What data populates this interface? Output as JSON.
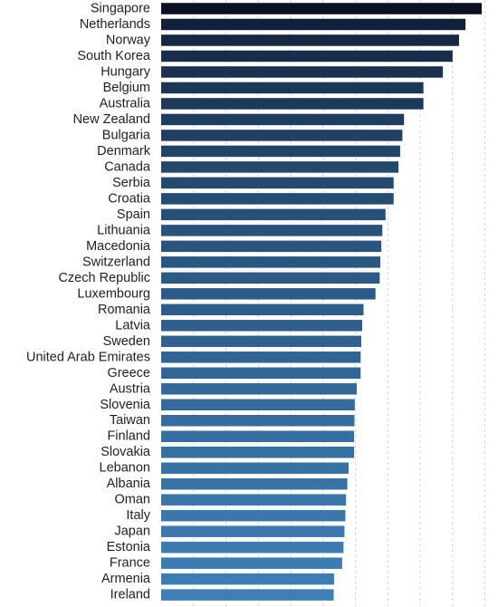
{
  "chart_data": {
    "type": "bar",
    "orientation": "horizontal",
    "title": "",
    "xlabel": "",
    "ylabel": "",
    "grid": true,
    "xlim": [
      0,
      100
    ],
    "categories": [
      "Singapore",
      "Netherlands",
      "Norway",
      "South Korea",
      "Hungary",
      "Belgium",
      "Australia",
      "New Zealand",
      "Bulgaria",
      "Denmark",
      "Canada",
      "Serbia",
      "Croatia",
      "Spain",
      "Lithuania",
      "Macedonia",
      "Switzerland",
      "Czech Republic",
      "Luxembourg",
      "Romania",
      "Latvia",
      "Sweden",
      "United Arab Emirates",
      "Greece",
      "Austria",
      "Slovenia",
      "Taiwan",
      "Finland",
      "Slovakia",
      "Lebanon",
      "Albania",
      "Oman",
      "Italy",
      "Japan",
      "Estonia",
      "France",
      "Armenia",
      "Ireland"
    ],
    "values": [
      99,
      94,
      92,
      90,
      87,
      81,
      81,
      75,
      74.5,
      73.8,
      73.3,
      71.8,
      71.8,
      69.3,
      68.3,
      68.0,
      67.7,
      67.5,
      66.2,
      62.5,
      62.1,
      61.8,
      61.6,
      61.6,
      60.4,
      59.8,
      59.7,
      59.6,
      59.6,
      57.9,
      57.5,
      57.1,
      56.9,
      56.6,
      56.3,
      55.9,
      53.4,
      53.3
    ],
    "colors": {
      "start": "#0a1124",
      "end": "#3f7fb6"
    }
  }
}
